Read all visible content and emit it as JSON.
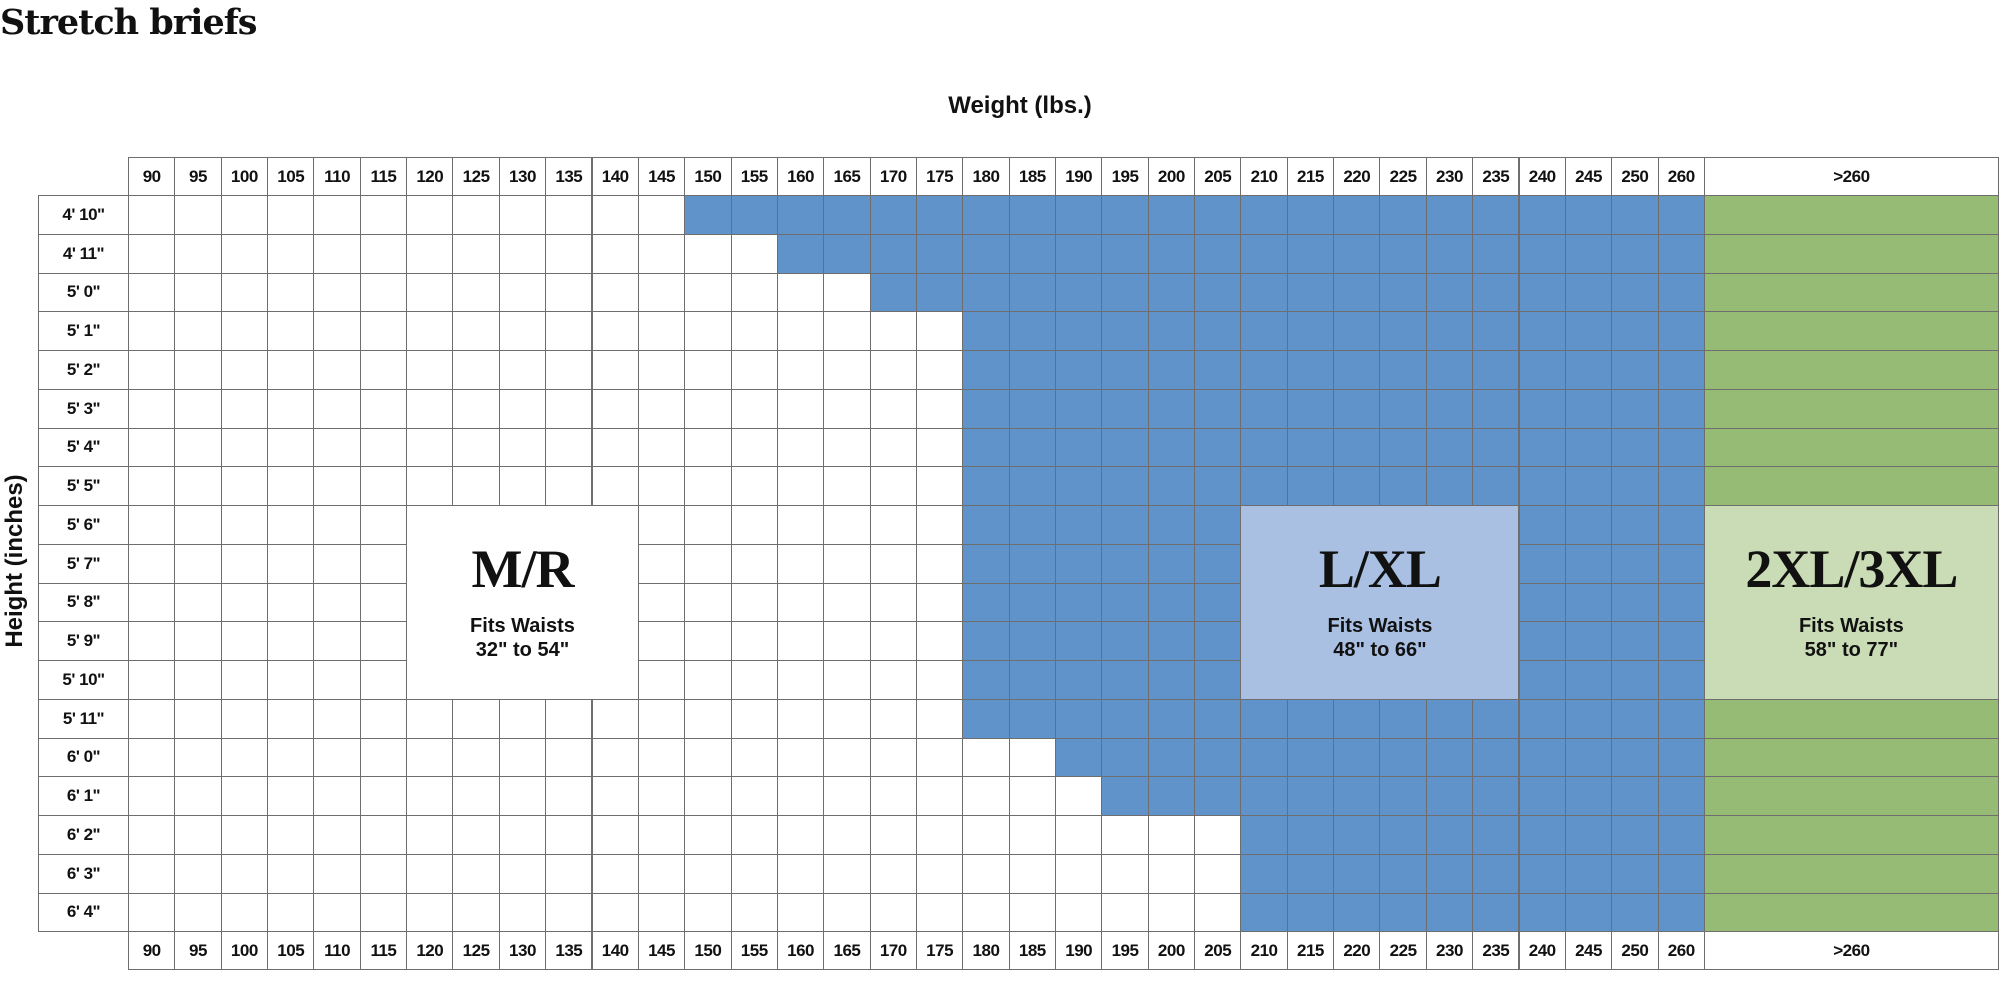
{
  "title": "Stretch briefs",
  "chart_data": {
    "type": "heatmap",
    "xlabel": "Weight (lbs.)",
    "ylabel": "Height (inches)",
    "columns": [
      "90",
      "95",
      "100",
      "105",
      "110",
      "115",
      "120",
      "125",
      "130",
      "135",
      "140",
      "145",
      "150",
      "155",
      "160",
      "165",
      "170",
      "175",
      "180",
      "185",
      "190",
      "195",
      "200",
      "205",
      "210",
      "215",
      "220",
      "225",
      "230",
      "235",
      "240",
      "245",
      "250",
      "260",
      ">260"
    ],
    "rows": [
      {
        "label": "4' 10\"",
        "lxl_from": "150"
      },
      {
        "label": "4' 11\"",
        "lxl_from": "160"
      },
      {
        "label": "5' 0\"",
        "lxl_from": "170"
      },
      {
        "label": "5' 1\"",
        "lxl_from": "180"
      },
      {
        "label": "5' 2\"",
        "lxl_from": "180"
      },
      {
        "label": "5' 3\"",
        "lxl_from": "180"
      },
      {
        "label": "5' 4\"",
        "lxl_from": "180"
      },
      {
        "label": "5' 5\"",
        "lxl_from": "180"
      },
      {
        "label": "5' 6\"",
        "lxl_from": "180"
      },
      {
        "label": "5' 7\"",
        "lxl_from": "180"
      },
      {
        "label": "5' 8\"",
        "lxl_from": "180"
      },
      {
        "label": "5' 9\"",
        "lxl_from": "180"
      },
      {
        "label": "5' 10\"",
        "lxl_from": "180"
      },
      {
        "label": "5' 11\"",
        "lxl_from": "180"
      },
      {
        "label": "6' 0\"",
        "lxl_from": "190"
      },
      {
        "label": "6' 1\"",
        "lxl_from": "195"
      },
      {
        "label": "6' 2\"",
        "lxl_from": "210"
      },
      {
        "label": "6' 3\"",
        "lxl_from": "210"
      },
      {
        "label": "6' 4\"",
        "lxl_from": "210"
      }
    ],
    "sizes": [
      {
        "name": "M/R",
        "fits_label": "Fits Waists",
        "range": "32\"  to 54\"",
        "color": "#ffffff",
        "label_color": "#ffffff",
        "label_cols": [
          "120",
          "140"
        ],
        "label_rows": [
          "5' 6\"",
          "5' 10\""
        ]
      },
      {
        "name": "L/XL",
        "fits_label": "Fits Waists",
        "range": "48\"  to 66\"",
        "color": "#5f93c9",
        "label_color": "#a9c0e3",
        "label_cols": [
          "210",
          "235"
        ],
        "label_rows": [
          "5' 6\"",
          "5' 10\""
        ]
      },
      {
        "name": "2XL/3XL",
        "fits_label": "Fits Waists",
        "range": "58\"  to 77\"",
        "color": "#95bb74",
        "label_color": "#cadcb6",
        "label_cols": [
          ">260",
          ">260"
        ],
        "label_rows": [
          "5' 6\"",
          "5' 10\""
        ]
      }
    ],
    "grid_color": "#6e6e6e"
  }
}
